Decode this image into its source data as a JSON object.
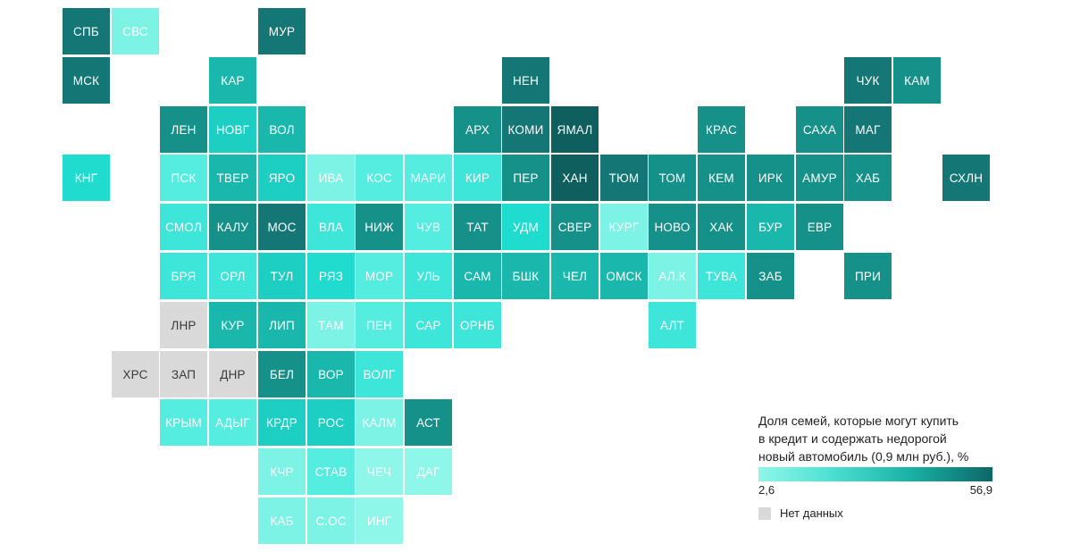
{
  "legend": {
    "title": "Доля семей, которые могут купить\nв кредит и содержать недорогой\nновый автомобиль (0,9 млн руб.), %",
    "min_label": "2,6",
    "max_label": "56,9",
    "no_data_label": "Нет данных",
    "colors": {
      "low": "#8ef7e9",
      "high": "#0d6767",
      "no_data": "#d9d9d9"
    }
  },
  "regions": [
    {
      "code": "СПБ",
      "col": 0,
      "row": 0,
      "color": "#157676"
    },
    {
      "code": "СВС",
      "col": 1,
      "row": 0,
      "color": "#7df3e6"
    },
    {
      "code": "МУР",
      "col": 4,
      "row": 0,
      "color": "#157676"
    },
    {
      "code": "МСК",
      "col": 0,
      "row": 1,
      "color": "#157676"
    },
    {
      "code": "КАР",
      "col": 3,
      "row": 1,
      "color": "#1ab8ac"
    },
    {
      "code": "НЕН",
      "col": 9,
      "row": 1,
      "color": "#157676"
    },
    {
      "code": "ЧУК",
      "col": 16,
      "row": 1,
      "color": "#157676"
    },
    {
      "code": "КАМ",
      "col": 17,
      "row": 1,
      "color": "#16918a"
    },
    {
      "code": "ЛЕН",
      "col": 2,
      "row": 2,
      "color": "#16918a"
    },
    {
      "code": "НОВГ",
      "col": 3,
      "row": 2,
      "color": "#1dcfc2"
    },
    {
      "code": "ВОЛ",
      "col": 4,
      "row": 2,
      "color": "#1ab8ac"
    },
    {
      "code": "АРХ",
      "col": 8,
      "row": 2,
      "color": "#16918a"
    },
    {
      "code": "КОМИ",
      "col": 9,
      "row": 2,
      "color": "#157676"
    },
    {
      "code": "ЯМАЛ",
      "col": 10,
      "row": 2,
      "color": "#0f5f5e"
    },
    {
      "code": "КРАС",
      "col": 13,
      "row": 2,
      "color": "#16918a"
    },
    {
      "code": "САХА",
      "col": 15,
      "row": 2,
      "color": "#16918a"
    },
    {
      "code": "МАГ",
      "col": 16,
      "row": 2,
      "color": "#157676"
    },
    {
      "code": "КНГ",
      "col": 0,
      "row": 3,
      "color": "#1fdccf"
    },
    {
      "code": "ПСК",
      "col": 2,
      "row": 3,
      "color": "#55ede0"
    },
    {
      "code": "ТВЕР",
      "col": 3,
      "row": 3,
      "color": "#1ab8ac"
    },
    {
      "code": "ЯРО",
      "col": 4,
      "row": 3,
      "color": "#1dcfc2"
    },
    {
      "code": "ИВА",
      "col": 5,
      "row": 3,
      "color": "#7df3e6"
    },
    {
      "code": "КОС",
      "col": 6,
      "row": 3,
      "color": "#55ede0"
    },
    {
      "code": "МАРИ",
      "col": 7,
      "row": 3,
      "color": "#55ede0"
    },
    {
      "code": "КИР",
      "col": 8,
      "row": 3,
      "color": "#3de6d8"
    },
    {
      "code": "ПЕР",
      "col": 9,
      "row": 3,
      "color": "#16918a"
    },
    {
      "code": "ХАН",
      "col": 10,
      "row": 3,
      "color": "#0f5f5e"
    },
    {
      "code": "ТЮМ",
      "col": 11,
      "row": 3,
      "color": "#157676"
    },
    {
      "code": "ТОМ",
      "col": 12,
      "row": 3,
      "color": "#16918a"
    },
    {
      "code": "КЕМ",
      "col": 13,
      "row": 3,
      "color": "#16918a"
    },
    {
      "code": "ИРК",
      "col": 14,
      "row": 3,
      "color": "#16918a"
    },
    {
      "code": "АМУР",
      "col": 15,
      "row": 3,
      "color": "#16918a"
    },
    {
      "code": "ХАБ",
      "col": 16,
      "row": 3,
      "color": "#16918a"
    },
    {
      "code": "СХЛН",
      "col": 18,
      "row": 3,
      "color": "#157676"
    },
    {
      "code": "СМОЛ",
      "col": 2,
      "row": 4,
      "color": "#3de6d8"
    },
    {
      "code": "КАЛУ",
      "col": 3,
      "row": 4,
      "color": "#16918a"
    },
    {
      "code": "МОС",
      "col": 4,
      "row": 4,
      "color": "#157676"
    },
    {
      "code": "ВЛА",
      "col": 5,
      "row": 4,
      "color": "#3de6d8"
    },
    {
      "code": "НИЖ",
      "col": 6,
      "row": 4,
      "color": "#16918a"
    },
    {
      "code": "ЧУВ",
      "col": 7,
      "row": 4,
      "color": "#55ede0"
    },
    {
      "code": "ТАТ",
      "col": 8,
      "row": 4,
      "color": "#16918a"
    },
    {
      "code": "УДМ",
      "col": 9,
      "row": 4,
      "color": "#1fdccf"
    },
    {
      "code": "СВЕР",
      "col": 10,
      "row": 4,
      "color": "#16918a"
    },
    {
      "code": "КУРГ",
      "col": 11,
      "row": 4,
      "color": "#7df3e6"
    },
    {
      "code": "НОВО",
      "col": 12,
      "row": 4,
      "color": "#16918a"
    },
    {
      "code": "ХАК",
      "col": 13,
      "row": 4,
      "color": "#16918a"
    },
    {
      "code": "БУР",
      "col": 14,
      "row": 4,
      "color": "#1ab8ac"
    },
    {
      "code": "ЕВР",
      "col": 15,
      "row": 4,
      "color": "#16918a"
    },
    {
      "code": "БРЯ",
      "col": 2,
      "row": 5,
      "color": "#3de6d8"
    },
    {
      "code": "ОРЛ",
      "col": 3,
      "row": 5,
      "color": "#3de6d8"
    },
    {
      "code": "ТУЛ",
      "col": 4,
      "row": 5,
      "color": "#1dcfc2"
    },
    {
      "code": "РЯЗ",
      "col": 5,
      "row": 5,
      "color": "#1fdccf"
    },
    {
      "code": "МОР",
      "col": 6,
      "row": 5,
      "color": "#55ede0"
    },
    {
      "code": "УЛЬ",
      "col": 7,
      "row": 5,
      "color": "#3de6d8"
    },
    {
      "code": "САМ",
      "col": 8,
      "row": 5,
      "color": "#1ab8ac"
    },
    {
      "code": "БШК",
      "col": 9,
      "row": 5,
      "color": "#1ab8ac"
    },
    {
      "code": "ЧЕЛ",
      "col": 10,
      "row": 5,
      "color": "#1ab8ac"
    },
    {
      "code": "ОМСК",
      "col": 11,
      "row": 5,
      "color": "#1ab8ac"
    },
    {
      "code": "АЛ.К",
      "col": 12,
      "row": 5,
      "color": "#7df3e6"
    },
    {
      "code": "ТУВА",
      "col": 13,
      "row": 5,
      "color": "#3de6d8"
    },
    {
      "code": "ЗАБ",
      "col": 14,
      "row": 5,
      "color": "#16918a"
    },
    {
      "code": "ПРИ",
      "col": 16,
      "row": 5,
      "color": "#16918a"
    },
    {
      "code": "ЛНР",
      "col": 2,
      "row": 6,
      "color": "#d9d9d9",
      "no_data": true
    },
    {
      "code": "КУР",
      "col": 3,
      "row": 6,
      "color": "#1ab8ac"
    },
    {
      "code": "ЛИП",
      "col": 4,
      "row": 6,
      "color": "#1ab8ac"
    },
    {
      "code": "ТАМ",
      "col": 5,
      "row": 6,
      "color": "#7df3e6"
    },
    {
      "code": "ПЕН",
      "col": 6,
      "row": 6,
      "color": "#55ede0"
    },
    {
      "code": "САР",
      "col": 7,
      "row": 6,
      "color": "#3de6d8"
    },
    {
      "code": "ОРНБ",
      "col": 8,
      "row": 6,
      "color": "#3de6d8"
    },
    {
      "code": "АЛТ",
      "col": 12,
      "row": 6,
      "color": "#3de6d8"
    },
    {
      "code": "ХРС",
      "col": 1,
      "row": 7,
      "color": "#d9d9d9",
      "no_data": true
    },
    {
      "code": "ЗАП",
      "col": 2,
      "row": 7,
      "color": "#d9d9d9",
      "no_data": true
    },
    {
      "code": "ДНР",
      "col": 3,
      "row": 7,
      "color": "#d9d9d9",
      "no_data": true
    },
    {
      "code": "БЕЛ",
      "col": 4,
      "row": 7,
      "color": "#16918a"
    },
    {
      "code": "ВОР",
      "col": 5,
      "row": 7,
      "color": "#1ab8ac"
    },
    {
      "code": "ВОЛГ",
      "col": 6,
      "row": 7,
      "color": "#3de6d8"
    },
    {
      "code": "КРЫМ",
      "col": 2,
      "row": 8,
      "color": "#55ede0"
    },
    {
      "code": "АДЫГ",
      "col": 3,
      "row": 8,
      "color": "#55ede0"
    },
    {
      "code": "КРДР",
      "col": 4,
      "row": 8,
      "color": "#1dcfc2"
    },
    {
      "code": "РОС",
      "col": 5,
      "row": 8,
      "color": "#1dcfc2"
    },
    {
      "code": "КАЛМ",
      "col": 6,
      "row": 8,
      "color": "#7df3e6"
    },
    {
      "code": "АСТ",
      "col": 7,
      "row": 8,
      "color": "#16918a"
    },
    {
      "code": "КЧР",
      "col": 4,
      "row": 9,
      "color": "#7df3e6"
    },
    {
      "code": "СТАВ",
      "col": 5,
      "row": 9,
      "color": "#55ede0"
    },
    {
      "code": "ЧЕЧ",
      "col": 6,
      "row": 9,
      "color": "#8ef7e9"
    },
    {
      "code": "ДАГ",
      "col": 7,
      "row": 9,
      "color": "#8ef7e9"
    },
    {
      "code": "КАБ",
      "col": 4,
      "row": 10,
      "color": "#7df3e6"
    },
    {
      "code": "С.ОС",
      "col": 5,
      "row": 10,
      "color": "#7df3e6"
    },
    {
      "code": "ИНГ",
      "col": 6,
      "row": 10,
      "color": "#8ef7e9"
    }
  ]
}
